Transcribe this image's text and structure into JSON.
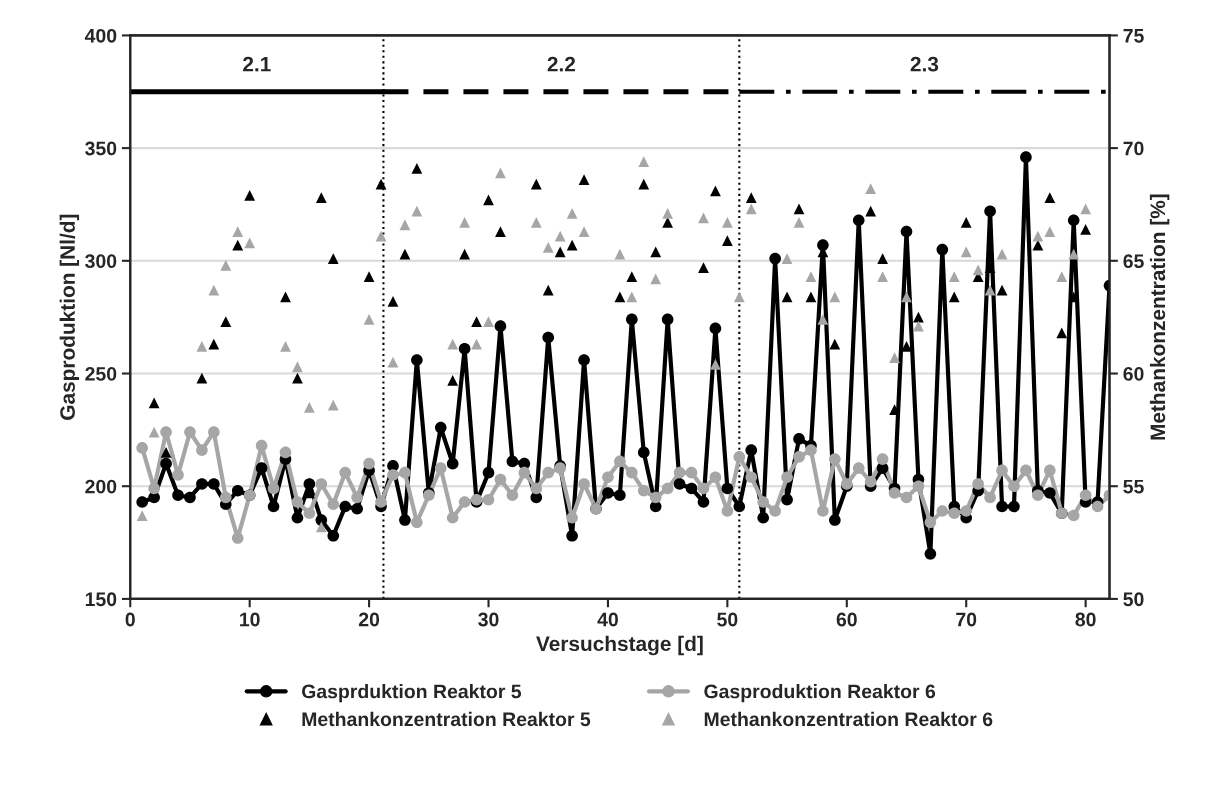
{
  "chart_data": {
    "type": "line",
    "xlabel": "Versuchstage [d]",
    "ylabel": "Gasproduktion [Nl/d]",
    "y2label": "Methankonzentration [%]",
    "x": [
      1,
      2,
      3,
      4,
      5,
      6,
      7,
      8,
      9,
      10,
      11,
      12,
      13,
      14,
      15,
      16,
      17,
      18,
      19,
      20,
      21,
      22,
      23,
      24,
      25,
      26,
      27,
      28,
      29,
      30,
      31,
      32,
      33,
      34,
      35,
      36,
      37,
      38,
      39,
      40,
      41,
      42,
      43,
      44,
      45,
      46,
      47,
      48,
      49,
      50,
      51,
      52,
      53,
      54,
      55,
      56,
      57,
      58,
      59,
      60,
      61,
      62,
      63,
      64,
      65,
      66,
      67,
      68,
      69,
      70,
      71,
      72,
      73,
      74,
      75,
      76,
      77,
      78,
      79,
      80,
      81,
      82
    ],
    "series": [
      {
        "name": "Gasprduktion Reaktor 5",
        "color": "#000000",
        "marker": "circle",
        "line_style": "solid",
        "values": [
          193,
          195,
          210,
          196,
          195,
          201,
          201,
          192,
          198,
          196,
          208,
          191,
          212,
          186,
          201,
          185,
          178,
          191,
          190,
          207,
          191,
          209,
          185,
          256,
          197,
          226,
          210,
          261,
          193,
          206,
          271,
          211,
          210,
          195,
          266,
          209,
          178,
          256,
          190,
          197,
          196,
          274,
          215,
          191,
          274,
          201,
          199,
          193,
          270,
          199,
          191,
          216,
          186,
          301,
          194,
          221,
          218,
          307,
          185,
          200,
          318,
          200,
          208,
          199,
          313,
          203,
          170,
          305,
          191,
          186,
          198,
          322,
          191,
          191,
          346,
          198,
          197,
          188,
          318,
          193,
          193,
          289
        ]
      },
      {
        "name": "Gasproduktion Reaktor 6",
        "color": "#a6a6a6",
        "marker": "circle",
        "line_style": "solid",
        "values": [
          217,
          199,
          224,
          205,
          224,
          216,
          224,
          195,
          177,
          196,
          218,
          199,
          215,
          193,
          188,
          201,
          192,
          206,
          195,
          210,
          193,
          205,
          206,
          184,
          196,
          208,
          186,
          193,
          194,
          194,
          203,
          196,
          206,
          199,
          206,
          208,
          186,
          201,
          190,
          204,
          211,
          206,
          198,
          195,
          199,
          206,
          206,
          199,
          204,
          189,
          213,
          204,
          193,
          189,
          204,
          213,
          216,
          189,
          212,
          201,
          208,
          202,
          212,
          197,
          195,
          200,
          184,
          189,
          188,
          189,
          201,
          195,
          207,
          200,
          207,
          196,
          207,
          188,
          187,
          196,
          191,
          196
        ]
      },
      {
        "name": "Methankonzentration Reaktor 5",
        "type": "scatter",
        "axis": "y2",
        "color": "#000000",
        "marker": "triangle",
        "values": [
          null,
          58.7,
          56.5,
          null,
          null,
          59.8,
          61.3,
          62.3,
          65.7,
          67.9,
          null,
          null,
          63.4,
          59.8,
          54.7,
          67.8,
          65.1,
          null,
          null,
          64.3,
          68.4,
          63.2,
          65.3,
          69.1,
          null,
          null,
          59.7,
          65.3,
          62.3,
          67.7,
          66.3,
          null,
          null,
          68.4,
          63.7,
          65.4,
          65.7,
          68.6,
          null,
          null,
          63.4,
          64.3,
          68.4,
          65.4,
          66.7,
          null,
          null,
          64.7,
          68.1,
          65.9,
          null,
          67.8,
          null,
          null,
          63.4,
          67.3,
          63.4,
          65.4,
          61.3,
          null,
          null,
          67.2,
          65.1,
          58.4,
          61.2,
          62.5,
          null,
          null,
          63.4,
          66.7,
          64.3,
          64.7,
          63.7,
          null,
          null,
          65.7,
          67.8,
          61.8,
          63.4,
          66.4,
          null,
          null
        ]
      },
      {
        "name": "Methankonzentration Reaktor 6",
        "type": "scatter",
        "axis": "y2",
        "color": "#a6a6a6",
        "marker": "triangle",
        "values": [
          53.7,
          57.4,
          null,
          null,
          null,
          61.2,
          63.7,
          64.8,
          66.3,
          65.8,
          null,
          null,
          61.2,
          60.3,
          58.5,
          53.2,
          58.6,
          null,
          null,
          62.4,
          66.1,
          60.5,
          66.6,
          67.2,
          null,
          null,
          61.3,
          66.7,
          61.3,
          62.3,
          68.9,
          null,
          null,
          66.7,
          65.6,
          66.1,
          67.1,
          66.3,
          null,
          null,
          65.3,
          63.4,
          69.4,
          64.2,
          67.1,
          null,
          null,
          66.9,
          60.4,
          66.7,
          63.4,
          67.3,
          null,
          null,
          65.1,
          66.7,
          64.3,
          62.4,
          63.4,
          null,
          null,
          68.2,
          64.3,
          60.7,
          63.4,
          62.1,
          null,
          null,
          64.3,
          65.4,
          64.6,
          63.7,
          65.3,
          null,
          null,
          66.1,
          66.3,
          64.3,
          65.3,
          67.3,
          null,
          null
        ]
      },
      {
        "type": "line",
        "x": [
          0,
          21.2
        ],
        "values": [
          375,
          375
        ],
        "color": "#000000",
        "marker": "none",
        "line_style": "solid"
      },
      {
        "type": "line",
        "x": [
          21.2,
          51
        ],
        "values": [
          375,
          375
        ],
        "color": "#000000",
        "marker": "none",
        "line_style": "dashed"
      },
      {
        "type": "line",
        "x": [
          51,
          82
        ],
        "values": [
          375,
          375
        ],
        "color": "#000000",
        "marker": "none",
        "line_style": "dashdot"
      }
    ],
    "ref_lines": [
      {
        "axis": "x",
        "value": 21.2,
        "color": "#000000",
        "line_style": "dotted"
      },
      {
        "axis": "x",
        "value": 51,
        "color": "#000000",
        "line_style": "dotted"
      }
    ],
    "annotations": [
      "2.1",
      "2.2",
      "2.3"
    ],
    "xlim": [
      0,
      82
    ],
    "xticks": [
      0,
      10,
      20,
      30,
      40,
      50,
      60,
      70,
      80
    ],
    "ylim": [
      150,
      400
    ],
    "yticks": [
      150,
      200,
      250,
      300,
      350,
      400
    ],
    "y2lim": [
      50,
      75
    ],
    "y2ticks": [
      50,
      55,
      60,
      65,
      70,
      75
    ],
    "grid": "y",
    "legend": "bottom"
  }
}
